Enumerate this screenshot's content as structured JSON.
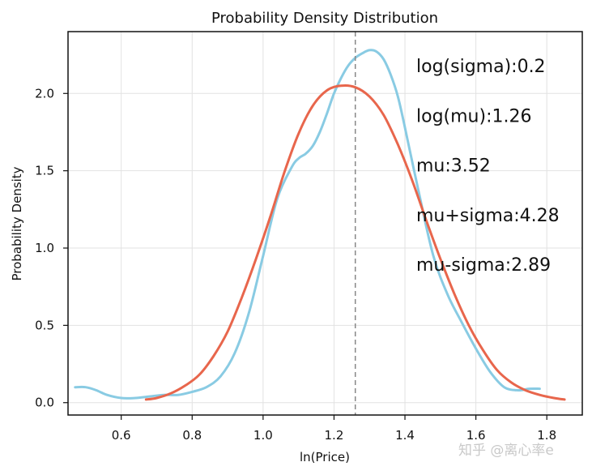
{
  "chart_data": {
    "type": "line",
    "title": "Probability Density Distribution",
    "xlabel": "ln(Price)",
    "ylabel": "Probability Density",
    "xlim": [
      0.45,
      1.9
    ],
    "ylim": [
      -0.08,
      2.4
    ],
    "xticks": [
      "0.6",
      "0.8",
      "1.0",
      "1.2",
      "1.4",
      "1.6",
      "1.8"
    ],
    "yticks": [
      "0.0",
      "0.5",
      "1.0",
      "1.5",
      "2.0"
    ],
    "grid": true,
    "legend": "none",
    "vline": {
      "x": 1.26,
      "color": "#888888",
      "style": "dashed"
    },
    "annotations": [
      "log(sigma):0.2",
      "log(mu):1.26",
      "mu:3.52",
      "mu+sigma:4.28",
      "mu-sigma:2.89"
    ],
    "series": [
      {
        "color": "#89cbe3",
        "x": [
          0.47,
          0.5,
          0.53,
          0.56,
          0.6,
          0.64,
          0.68,
          0.72,
          0.76,
          0.8,
          0.84,
          0.88,
          0.92,
          0.96,
          1.0,
          1.04,
          1.08,
          1.1,
          1.12,
          1.14,
          1.16,
          1.18,
          1.2,
          1.22,
          1.24,
          1.26,
          1.28,
          1.3,
          1.32,
          1.34,
          1.36,
          1.38,
          1.4,
          1.44,
          1.48,
          1.52,
          1.56,
          1.6,
          1.64,
          1.68,
          1.72,
          1.75,
          1.78
        ],
        "y": [
          0.1,
          0.1,
          0.08,
          0.05,
          0.03,
          0.03,
          0.04,
          0.05,
          0.05,
          0.07,
          0.1,
          0.17,
          0.32,
          0.58,
          0.95,
          1.32,
          1.52,
          1.58,
          1.61,
          1.66,
          1.75,
          1.87,
          2.0,
          2.1,
          2.18,
          2.23,
          2.26,
          2.28,
          2.27,
          2.22,
          2.12,
          1.98,
          1.78,
          1.35,
          0.95,
          0.7,
          0.52,
          0.35,
          0.2,
          0.1,
          0.08,
          0.09,
          0.09
        ]
      },
      {
        "color": "#e8664c",
        "x": [
          0.67,
          0.7,
          0.74,
          0.78,
          0.82,
          0.86,
          0.9,
          0.94,
          0.98,
          1.02,
          1.06,
          1.1,
          1.14,
          1.18,
          1.22,
          1.26,
          1.3,
          1.34,
          1.38,
          1.42,
          1.46,
          1.5,
          1.54,
          1.58,
          1.62,
          1.66,
          1.7,
          1.74,
          1.78,
          1.82,
          1.85
        ],
        "y": [
          0.02,
          0.03,
          0.06,
          0.11,
          0.18,
          0.3,
          0.46,
          0.68,
          0.93,
          1.2,
          1.49,
          1.74,
          1.92,
          2.02,
          2.05,
          2.04,
          1.98,
          1.86,
          1.67,
          1.44,
          1.18,
          0.93,
          0.7,
          0.5,
          0.34,
          0.21,
          0.13,
          0.08,
          0.05,
          0.03,
          0.02
        ]
      }
    ]
  },
  "watermark": "知乎 @离心率e"
}
